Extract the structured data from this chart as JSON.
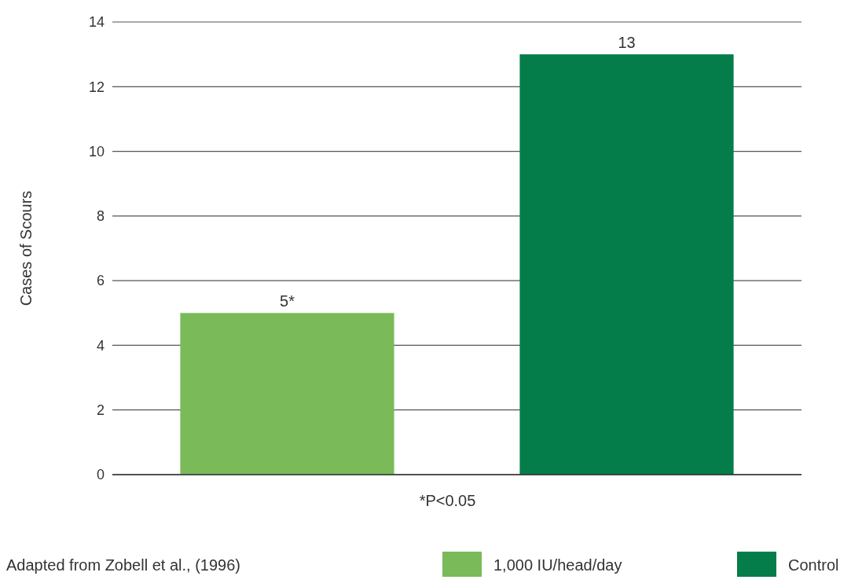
{
  "chart_data": {
    "type": "bar",
    "ylabel": "Cases of Scours",
    "categories": [
      null,
      null
    ],
    "series": [
      {
        "name": "1,000 IU/head/day",
        "color": "#7aba59",
        "values": [
          5,
          null
        ],
        "value_labels": [
          "5*",
          null
        ]
      },
      {
        "name": "Control",
        "color": "#057d4a",
        "values": [
          null,
          13
        ],
        "value_labels": [
          null,
          "13"
        ]
      }
    ],
    "ylim": [
      0,
      14
    ],
    "yticks": [
      0,
      2,
      4,
      6,
      8,
      10,
      12,
      14
    ],
    "grid": "y",
    "legend": "bottom right",
    "annotations": [
      "*P<0.05",
      "Adapted from Zobell et al., (1996)"
    ]
  }
}
